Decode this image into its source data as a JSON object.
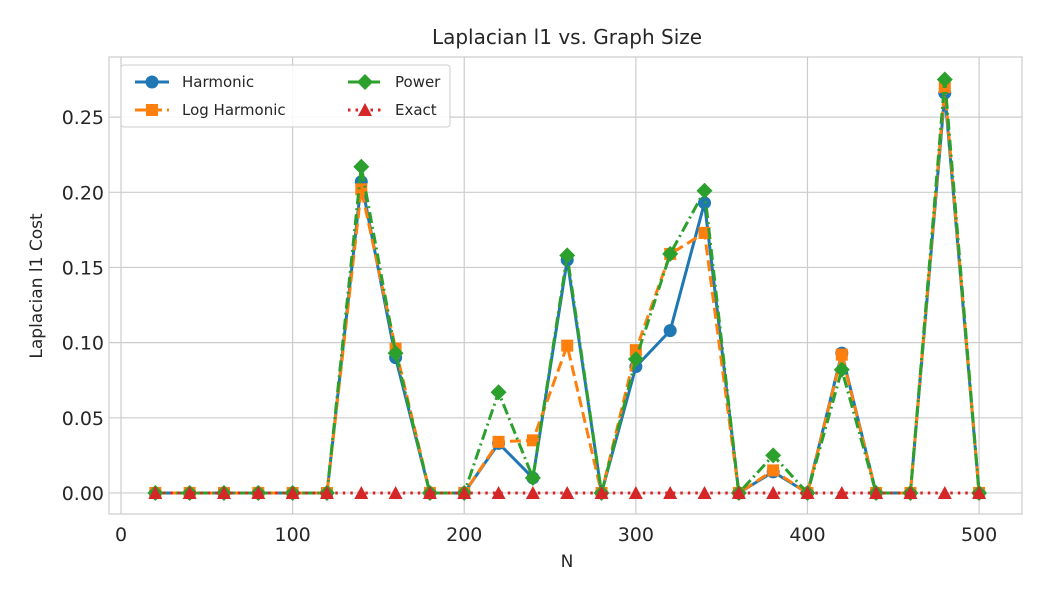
{
  "chart_data": {
    "type": "line",
    "title": "Laplacian l1 vs. Graph Size",
    "xlabel": "N",
    "ylabel": "Laplacian l1 Cost",
    "xlim": [
      -7,
      525
    ],
    "ylim": [
      -0.014,
      0.29
    ],
    "xticks": [
      0,
      100,
      200,
      300,
      400,
      500
    ],
    "yticks": [
      0.0,
      0.05,
      0.1,
      0.15,
      0.2,
      0.25
    ],
    "xtick_labels": [
      "0",
      "100",
      "200",
      "300",
      "400",
      "500"
    ],
    "ytick_labels": [
      "0.00",
      "0.05",
      "0.10",
      "0.15",
      "0.20",
      "0.25"
    ],
    "grid": true,
    "legend_position": "top-left",
    "legend_columns": 2,
    "x": [
      20,
      40,
      60,
      80,
      100,
      120,
      140,
      160,
      180,
      200,
      220,
      240,
      260,
      280,
      300,
      320,
      340,
      360,
      380,
      400,
      420,
      440,
      460,
      480,
      500
    ],
    "series": [
      {
        "name": "Harmonic",
        "color": "#1f77b4",
        "linestyle": "solid",
        "marker": "circle",
        "values": [
          0,
          0,
          0,
          0,
          0,
          0,
          0.207,
          0.09,
          0,
          0,
          0.033,
          0.01,
          0.155,
          0,
          0.084,
          0.108,
          0.193,
          0,
          0.014,
          0,
          0.093,
          0,
          0,
          0.266,
          0
        ]
      },
      {
        "name": "Log Harmonic",
        "color": "#ff7f0e",
        "linestyle": "dashed",
        "marker": "square",
        "values": [
          0,
          0,
          0,
          0,
          0,
          0,
          0.202,
          0.096,
          0,
          0,
          0.034,
          0.035,
          0.098,
          0,
          0.095,
          0.159,
          0.173,
          0,
          0.015,
          0,
          0.092,
          0,
          0,
          0.27,
          0
        ]
      },
      {
        "name": "Power",
        "color": "#2ca02c",
        "linestyle": "dashdot",
        "marker": "diamond",
        "values": [
          0,
          0,
          0,
          0,
          0,
          0,
          0.217,
          0.093,
          0,
          0,
          0.067,
          0.01,
          0.158,
          0,
          0.089,
          0.159,
          0.201,
          0,
          0.025,
          0,
          0.082,
          0,
          0,
          0.275,
          0
        ]
      },
      {
        "name": "Exact",
        "color": "#d62728",
        "linestyle": "dotted",
        "marker": "triangle",
        "values": [
          0,
          0,
          0,
          0,
          0,
          0,
          0,
          0,
          0,
          0,
          0,
          0,
          0,
          0,
          0,
          0,
          0,
          0,
          0,
          0,
          0,
          0,
          0,
          0,
          0
        ]
      }
    ]
  }
}
